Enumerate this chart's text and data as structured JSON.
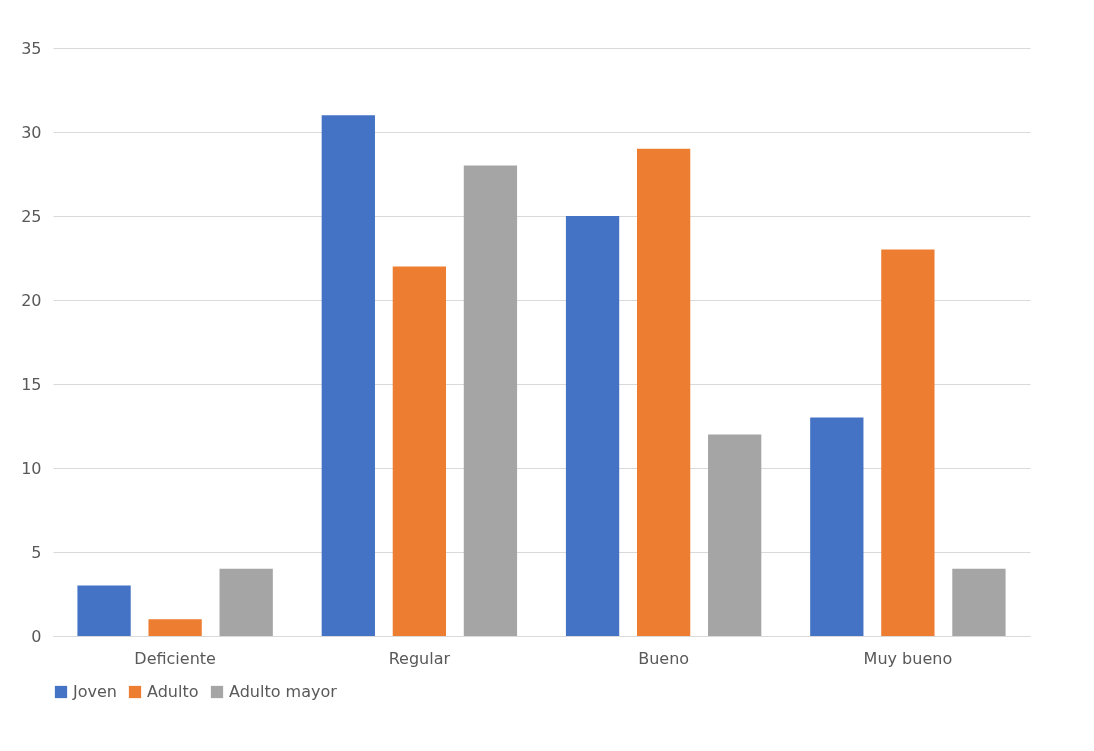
{
  "chart_data": {
    "type": "bar",
    "categories": [
      "Deficiente",
      "Regular",
      "Bueno",
      "Muy bueno"
    ],
    "series": [
      {
        "name": "Joven",
        "color": "#4472c4",
        "values": [
          3,
          31,
          25,
          13
        ]
      },
      {
        "name": "Adulto",
        "color": "#ed7d31",
        "values": [
          1,
          22,
          29,
          23
        ]
      },
      {
        "name": "Adulto mayor",
        "color": "#a5a5a5",
        "values": [
          4,
          28,
          12,
          4
        ]
      }
    ],
    "ylim": [
      0,
      35
    ],
    "yticks": [
      0,
      5,
      10,
      15,
      20,
      25,
      30,
      35
    ],
    "grid": "y",
    "legend": "bottom"
  }
}
